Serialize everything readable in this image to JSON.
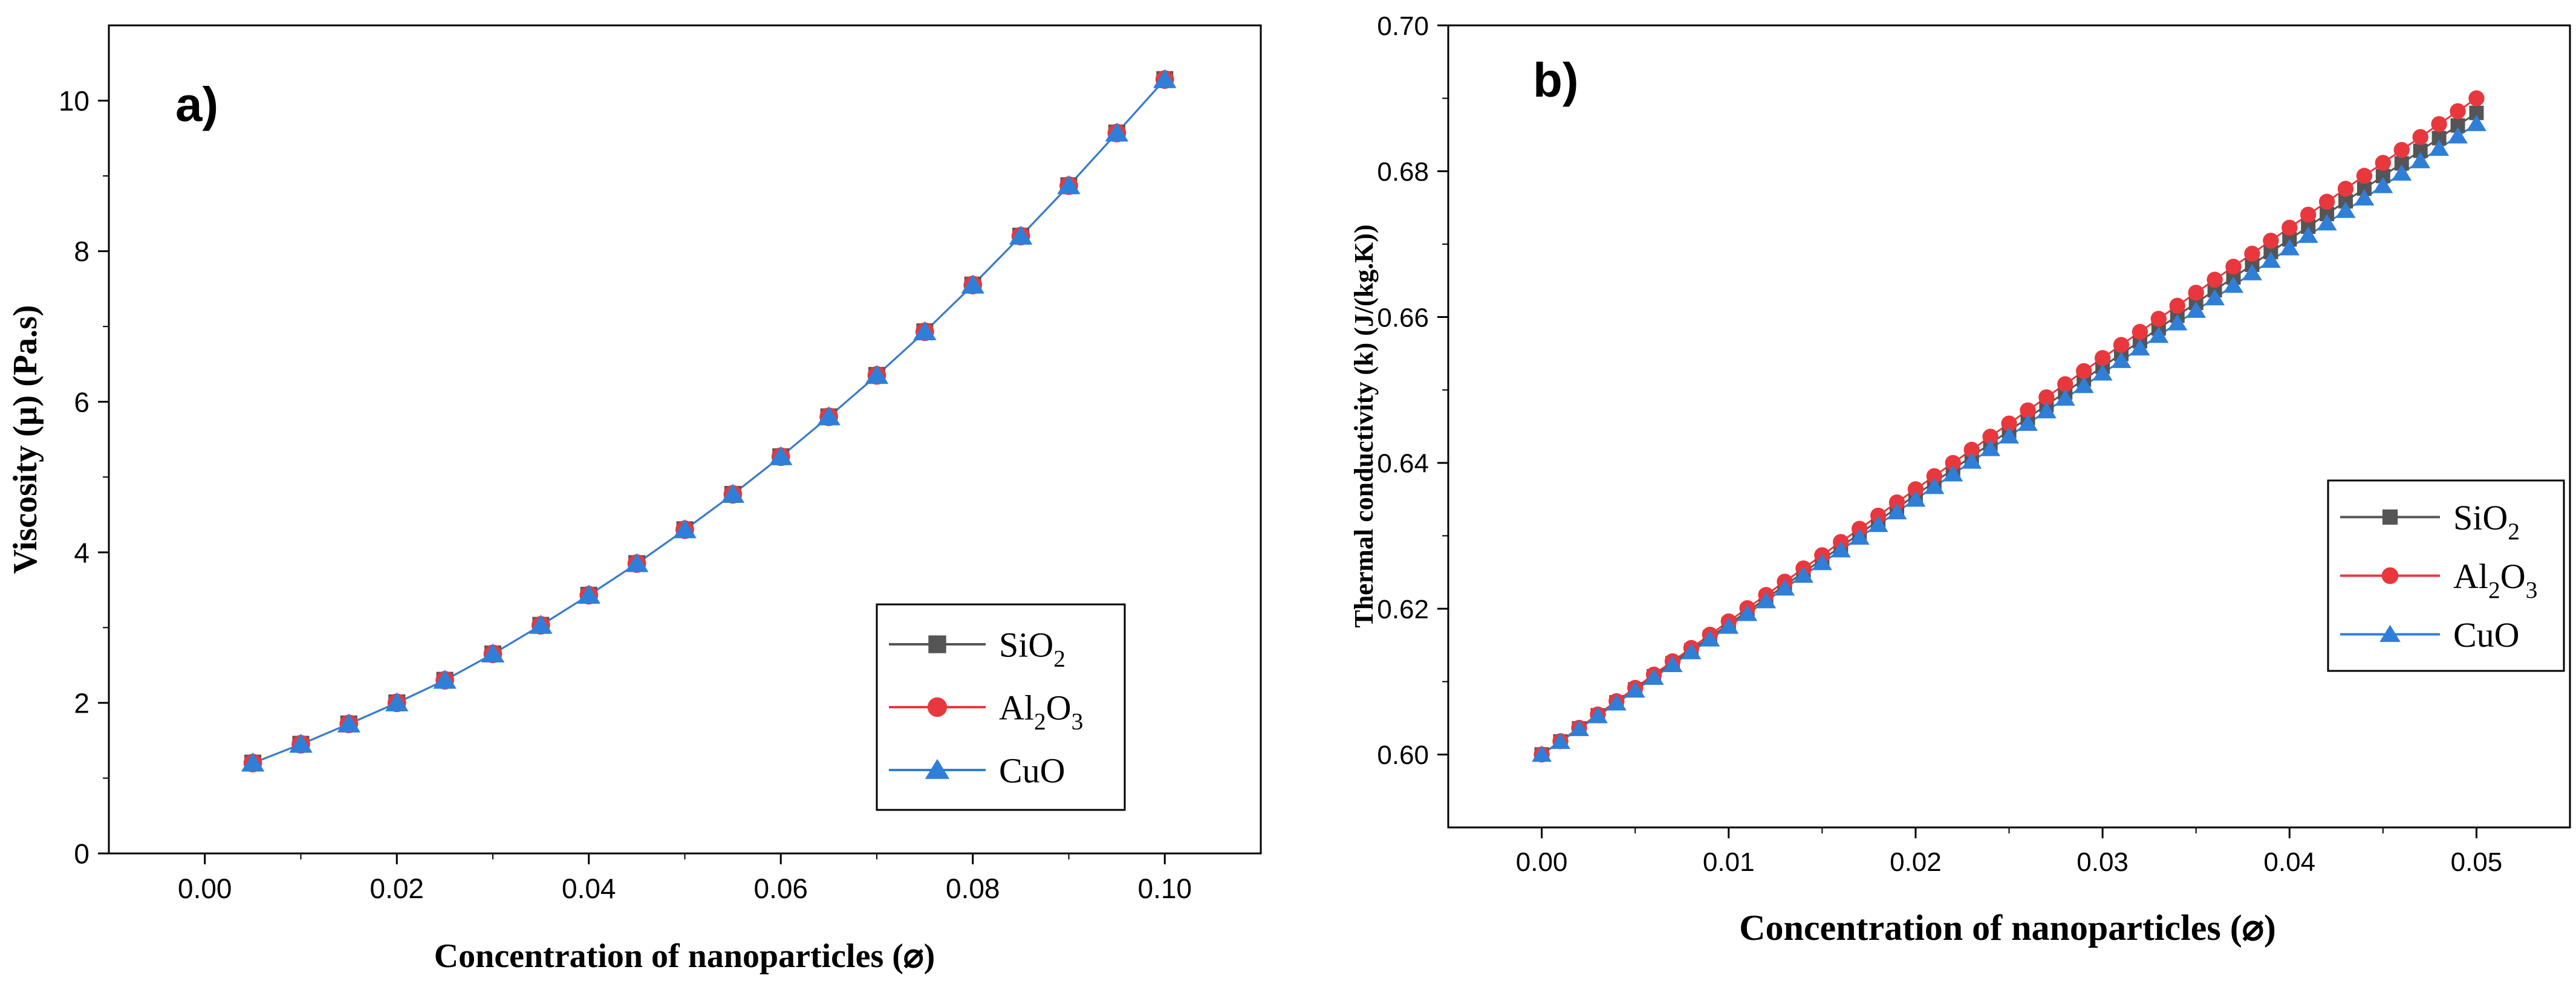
{
  "chart_data": [
    {
      "type": "line",
      "panel_label": "a)",
      "title": "",
      "xlabel": "Concentration of nanoparticles (⌀)",
      "ylabel": "Viscosity (μ) (Pa.s)",
      "xlim": [
        -0.01,
        0.11
      ],
      "ylim": [
        0,
        11
      ],
      "xticks": [
        0.0,
        0.02,
        0.04,
        0.06,
        0.08,
        0.1
      ],
      "xtick_labels": [
        "0.00",
        "0.02",
        "0.04",
        "0.06",
        "0.08",
        "0.10"
      ],
      "yticks": [
        0,
        2,
        4,
        6,
        8,
        10
      ],
      "ytick_labels": [
        "0",
        "2",
        "4",
        "6",
        "8",
        "10"
      ],
      "legend_position": "lower-right",
      "x": [
        0.005,
        0.01,
        0.015,
        0.02,
        0.025,
        0.03,
        0.035,
        0.04,
        0.045,
        0.05,
        0.055,
        0.06,
        0.065,
        0.07,
        0.075,
        0.08,
        0.085,
        0.09,
        0.095,
        0.1
      ],
      "series": [
        {
          "name": "SiO2",
          "base": "SiO",
          "sub1": "2",
          "mid": "",
          "sub2": "",
          "marker": "square",
          "color": "#555555",
          "values": [
            1.2,
            1.45,
            1.72,
            2.0,
            2.3,
            2.65,
            3.03,
            3.43,
            3.85,
            4.3,
            4.77,
            5.27,
            5.8,
            6.35,
            6.93,
            7.55,
            8.2,
            8.87,
            9.57,
            10.28
          ]
        },
        {
          "name": "Al2O3",
          "base": "Al",
          "sub1": "2",
          "mid": "O",
          "sub2": "3",
          "marker": "circle",
          "color": "#e8383d",
          "values": [
            1.2,
            1.45,
            1.72,
            2.0,
            2.3,
            2.65,
            3.03,
            3.43,
            3.85,
            4.3,
            4.77,
            5.27,
            5.8,
            6.35,
            6.93,
            7.55,
            8.2,
            8.87,
            9.57,
            10.28
          ]
        },
        {
          "name": "CuO",
          "base": "CuO",
          "sub1": "",
          "mid": "",
          "sub2": "",
          "marker": "triangle",
          "color": "#2f7fd8",
          "values": [
            1.2,
            1.45,
            1.72,
            2.0,
            2.3,
            2.65,
            3.03,
            3.43,
            3.85,
            4.3,
            4.77,
            5.27,
            5.8,
            6.35,
            6.93,
            7.55,
            8.2,
            8.87,
            9.57,
            10.28
          ]
        }
      ]
    },
    {
      "type": "line",
      "panel_label": "b)",
      "title": "",
      "xlabel": "Concentration of nanoparticles (⌀)",
      "ylabel": "Thermal conductivity (k) (J/(kg.K))",
      "xlim": [
        -0.005,
        0.055
      ],
      "ylim": [
        0.59,
        0.7
      ],
      "xticks": [
        0.0,
        0.01,
        0.02,
        0.03,
        0.04,
        0.05
      ],
      "xtick_labels": [
        "0.00",
        "0.01",
        "0.02",
        "0.03",
        "0.04",
        "0.05"
      ],
      "yticks": [
        0.6,
        0.62,
        0.64,
        0.66,
        0.68,
        0.7
      ],
      "ytick_labels": [
        "0.60",
        "0.62",
        "0.64",
        "0.66",
        "0.68",
        "0.70"
      ],
      "legend_position": "center-right",
      "x_range": [
        0.0,
        0.05
      ],
      "point_count": 51,
      "series": [
        {
          "name": "SiO2",
          "base": "SiO",
          "sub1": "2",
          "mid": "",
          "sub2": "",
          "marker": "square",
          "color": "#555555",
          "start": 0.6,
          "end": 0.688,
          "curvature": 0.0016
        },
        {
          "name": "Al2O3",
          "base": "Al",
          "sub1": "2",
          "mid": "O",
          "sub2": "3",
          "marker": "circle",
          "color": "#e8383d",
          "start": 0.6,
          "end": 0.69,
          "curvature": 0.0016
        },
        {
          "name": "CuO",
          "base": "CuO",
          "sub1": "",
          "mid": "",
          "sub2": "",
          "marker": "triangle",
          "color": "#2f7fd8",
          "start": 0.6,
          "end": 0.6865,
          "curvature": 0.0016
        }
      ]
    }
  ]
}
